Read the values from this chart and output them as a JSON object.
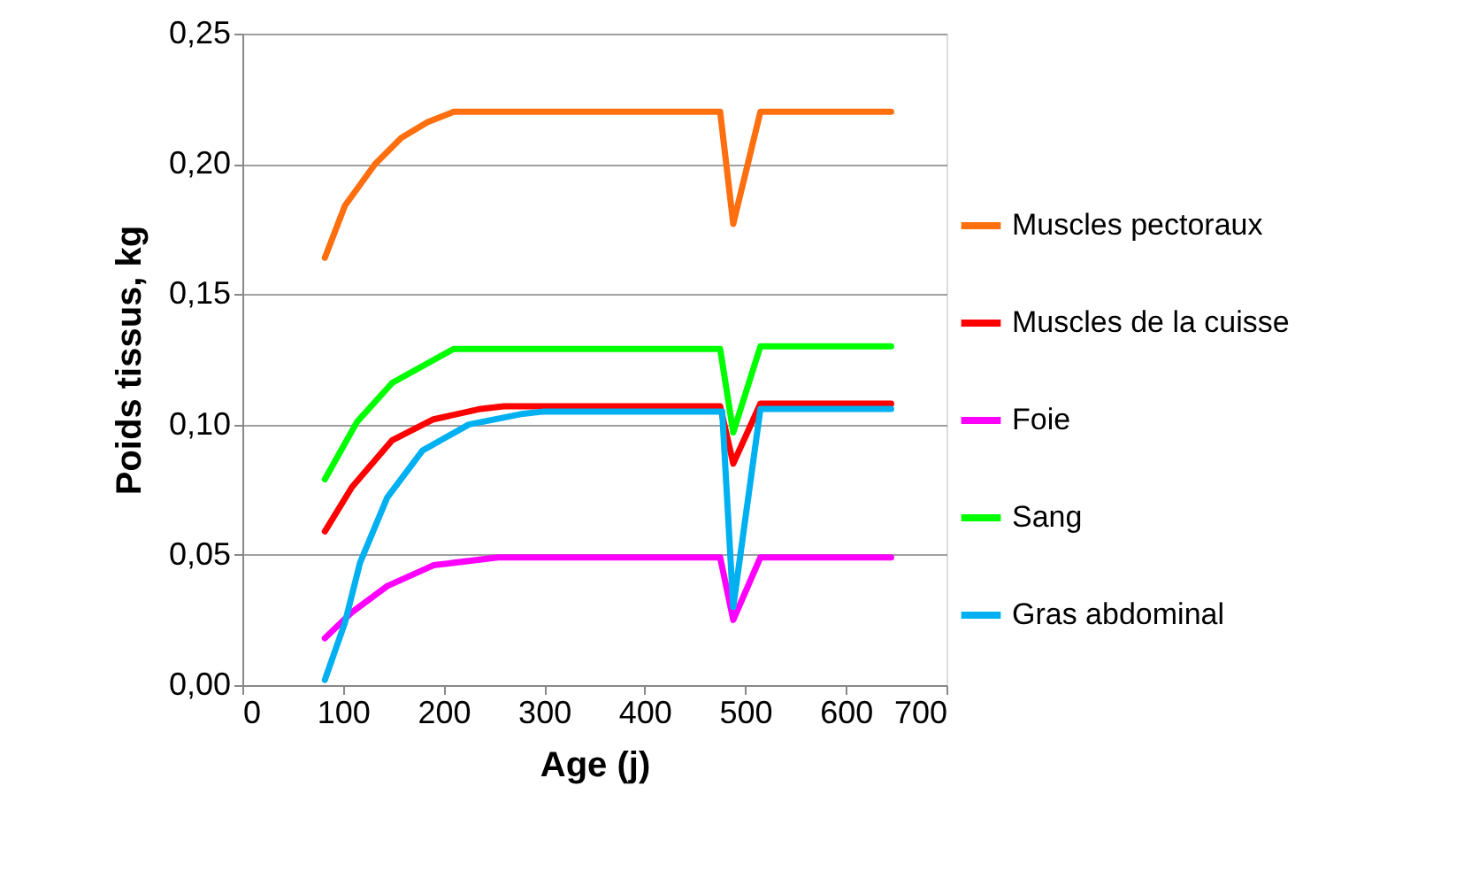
{
  "chart_data": {
    "type": "line",
    "xlabel": "Age (j)",
    "ylabel": "Poids tissus, kg",
    "xlim": [
      0,
      700
    ],
    "xticks": [
      0,
      100,
      200,
      300,
      400,
      500,
      600,
      700
    ],
    "ylim": [
      0,
      0.25
    ],
    "yticks": [
      {
        "value": 0,
        "label": "0,00"
      },
      {
        "value": 0.05,
        "label": "0,05"
      },
      {
        "value": 0.1,
        "label": "0,10"
      },
      {
        "value": 0.15,
        "label": "0,15"
      },
      {
        "value": 0.2,
        "label": "0,20"
      },
      {
        "value": 0.25,
        "label": "0,25"
      }
    ],
    "grid": "y",
    "legend": "right",
    "marker": "none",
    "line_style": "solid",
    "series": [
      {
        "name": "Muscles pectoraux",
        "color": "#ff6f0f",
        "x": [
          82,
          102,
          132,
          158,
          184,
          210,
          475,
          488,
          515,
          645
        ],
        "values": [
          0.164,
          0.184,
          0.2,
          0.21,
          0.216,
          0.22,
          0.22,
          0.177,
          0.22,
          0.22
        ]
      },
      {
        "name": "Muscles de la cuisse",
        "color": "#ff0000",
        "x": [
          82,
          109,
          149,
          190,
          237,
          260,
          475,
          488,
          515,
          645
        ],
        "values": [
          0.059,
          0.076,
          0.094,
          0.102,
          0.106,
          0.107,
          0.107,
          0.085,
          0.108,
          0.108
        ]
      },
      {
        "name": "Foie",
        "color": "#ff00ff",
        "x": [
          82,
          109,
          144,
          190,
          254,
          280,
          475,
          488,
          515,
          645
        ],
        "values": [
          0.018,
          0.028,
          0.038,
          0.046,
          0.049,
          0.049,
          0.049,
          0.025,
          0.049,
          0.049
        ]
      },
      {
        "name": "Sang",
        "color": "#00ff00",
        "x": [
          82,
          114,
          149,
          210,
          475,
          488,
          515,
          645
        ],
        "values": [
          0.079,
          0.101,
          0.116,
          0.129,
          0.129,
          0.097,
          0.13,
          0.13
        ]
      },
      {
        "name": "Gras abdominal",
        "color": "#00b0f0",
        "x": [
          82,
          102,
          117,
          144,
          179,
          225,
          277,
          300,
          477,
          488,
          515,
          645
        ],
        "values": [
          0.002,
          0.024,
          0.047,
          0.072,
          0.09,
          0.1,
          0.104,
          0.105,
          0.105,
          0.03,
          0.106,
          0.106
        ]
      }
    ]
  }
}
